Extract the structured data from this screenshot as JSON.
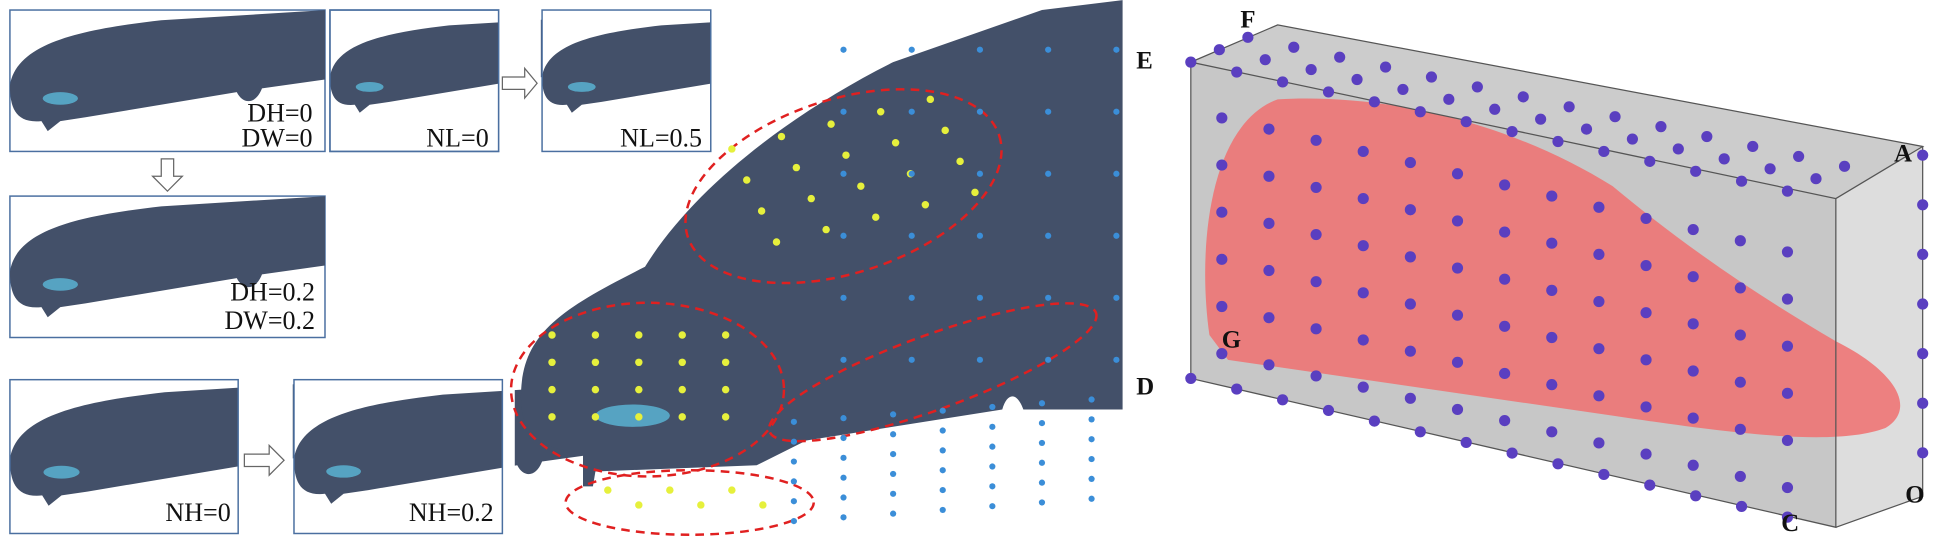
{
  "panels": [
    {
      "labels": [
        "DH=0",
        "DW=0"
      ]
    },
    {
      "labels": [
        "NL=0"
      ]
    },
    {
      "labels": [
        "NL=0.5"
      ]
    },
    {
      "labels": [
        "DH=0.2",
        "DW=0.2"
      ]
    },
    {
      "labels": [
        "NH=0"
      ]
    },
    {
      "labels": [
        "NH=0.2"
      ]
    }
  ],
  "main_view": {
    "labels": [
      "E",
      "D"
    ]
  },
  "box_view": {
    "labels": [
      "F",
      "A",
      "G",
      "C",
      "O"
    ]
  }
}
